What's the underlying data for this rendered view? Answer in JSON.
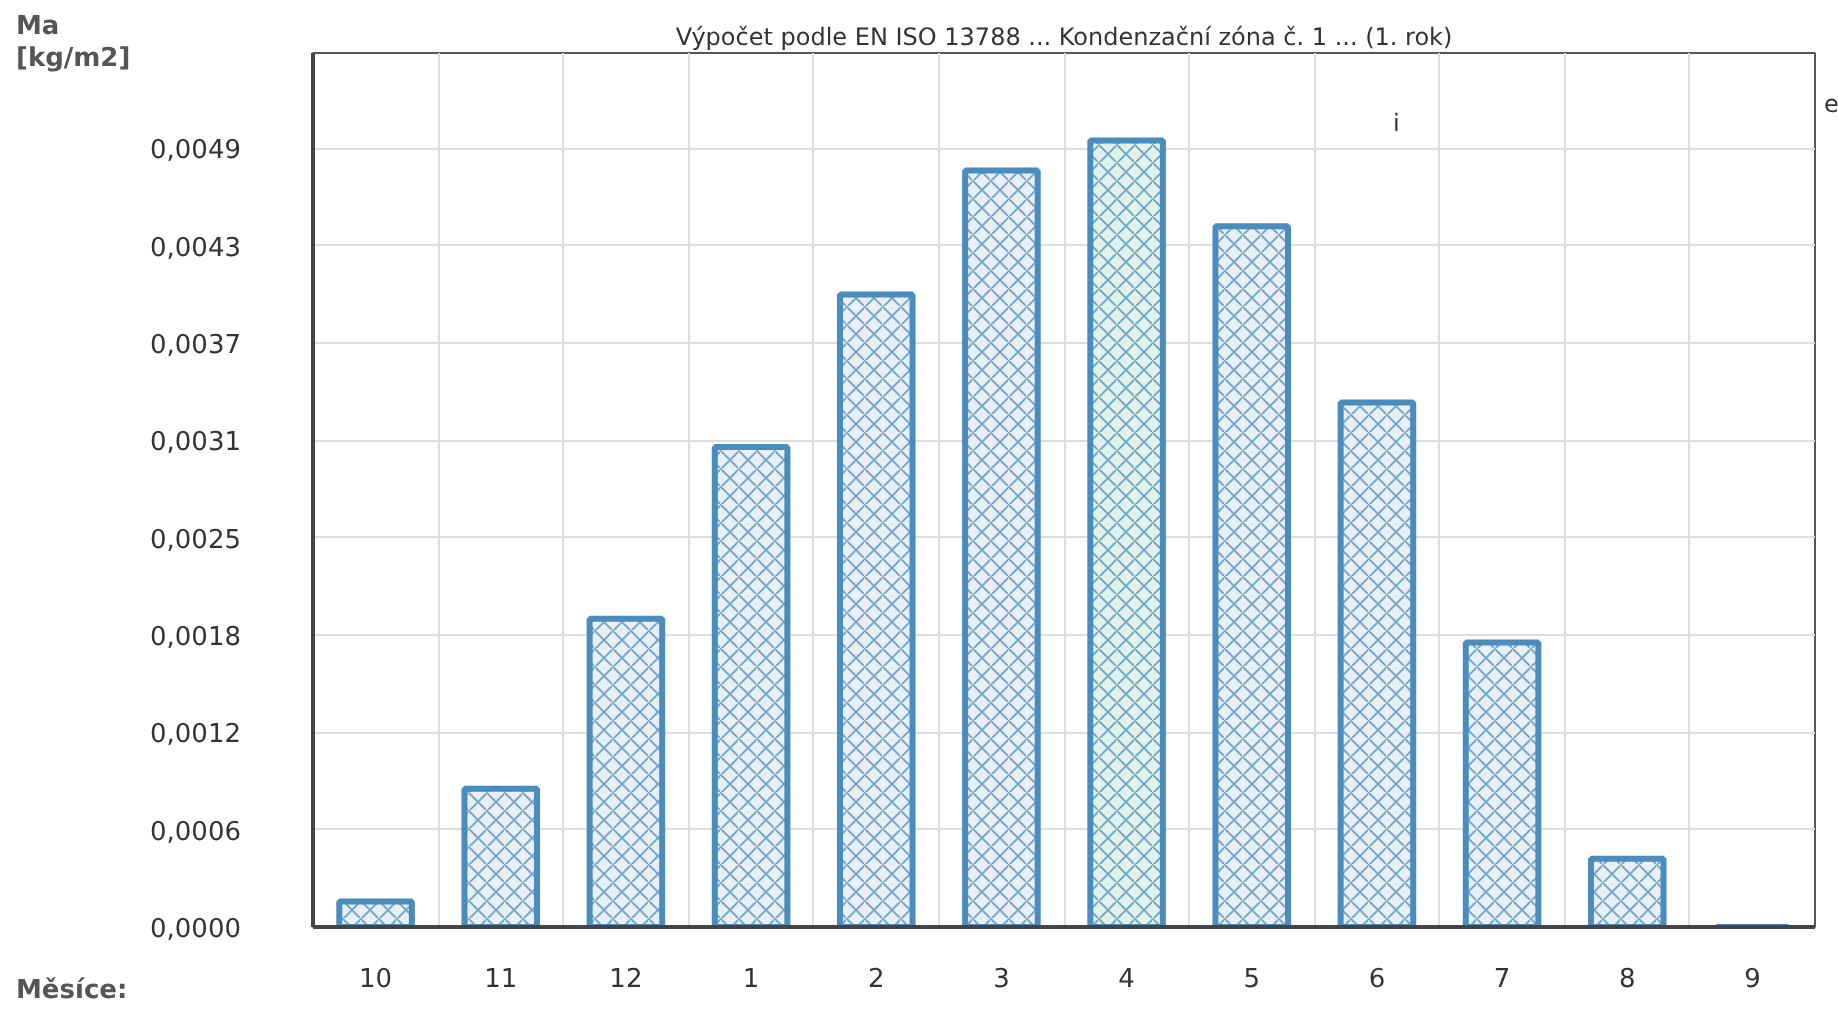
{
  "chart_data": {
    "type": "bar",
    "title": "Výpočet podle EN ISO 13788 ... Kondenzační zóna č. 1 ... (1. rok)",
    "ylabel": "Ma\n[kg/m2]",
    "xlabel": "Měsíce:",
    "categories": [
      "10",
      "11",
      "12",
      "1",
      "2",
      "3",
      "4",
      "5",
      "6",
      "7",
      "8",
      "9"
    ],
    "values": [
      0.00016,
      0.00087,
      0.00194,
      0.00302,
      0.00398,
      0.00476,
      0.00495,
      0.00441,
      0.0033,
      0.00179,
      0.00043,
      0
    ],
    "color": "#4a8cbc",
    "colors": [
      "#e8eff5",
      "#e8eff5",
      "#e8eff5",
      "#e8eff5",
      "#e8eff5",
      "#e8eff5",
      "#e0f2ea",
      "#e8eff5",
      "#e8eff5",
      "#e8eff5",
      "#e8eff5",
      "#4a8cbc"
    ],
    "ylim": [
      0,
      0.0055
    ],
    "yticks": [
      {
        "value": 0,
        "label": "0,0000"
      },
      {
        "value": 0.0006125,
        "label": "0,0006"
      },
      {
        "value": 0.001225,
        "label": "0,0012"
      },
      {
        "value": 0.0018375,
        "label": "0,0018"
      },
      {
        "value": 0.00245,
        "label": "0,0025"
      },
      {
        "value": 0.0030625,
        "label": "0,0031"
      },
      {
        "value": 0.003675,
        "label": "0,0037"
      },
      {
        "value": 0.0042875,
        "label": "0,0043"
      },
      {
        "value": 0.0049,
        "label": "0,0049"
      }
    ],
    "grid": true,
    "annotations": [
      "i",
      "e"
    ]
  }
}
